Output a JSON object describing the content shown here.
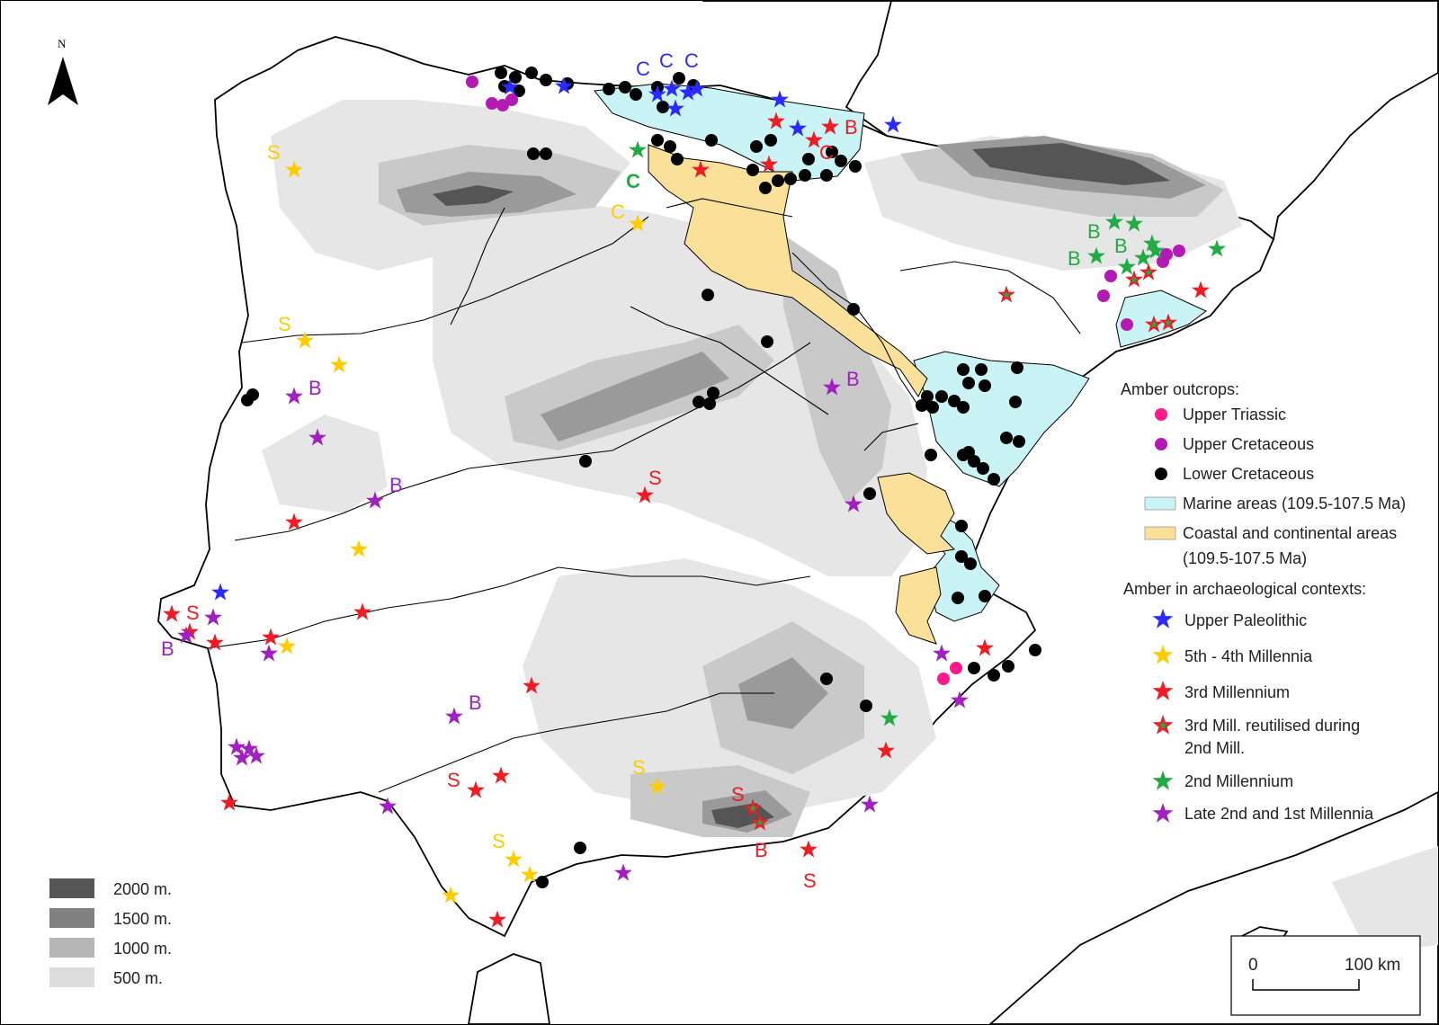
{
  "north": "N",
  "legend": {
    "outcrops_title": "Amber outcrops:",
    "upper_triassic": "Upper Triassic",
    "upper_cretaceous": "Upper Cretaceous",
    "lower_cretaceous": "Lower Cretaceous",
    "marine": "Marine areas (109.5-107.5 Ma)",
    "coastal_line1": "Coastal and continental areas",
    "coastal_line2": "(109.5-107.5 Ma)",
    "archaeo_title": "Amber in archaeological contexts:",
    "upper_paleolithic": "Upper Paleolithic",
    "m5_4": "5th - 4th Millennia",
    "m3": "3rd Millennium",
    "m3_reused_line1": "3rd Mill. reutilised during",
    "m3_reused_line2": "2nd Mill.",
    "m2": "2nd Millennium",
    "late2_1": "Late 2nd and 1st Millennia"
  },
  "elevation": [
    "2000 m.",
    "1500 m.",
    "1000 m.",
    "500 m."
  ],
  "scale": {
    "zero": "0",
    "end": "100 km"
  },
  "colors": {
    "upper_triassic": "#ff1a8c",
    "upper_cretaceous": "#b31ab3",
    "lower_cretaceous": "#000000",
    "marine": "#c9f3f5",
    "coastal": "#fbe09a",
    "upper_paleolithic": "#2b2bff",
    "m5_4": "#ffcc00",
    "m3": "#ee1c25",
    "m2": "#22aa44",
    "late2_1": "#a020c0"
  },
  "site_labels": [
    {
      "text": "C",
      "color": "blue"
    },
    {
      "text": "C",
      "color": "blue"
    },
    {
      "text": "C",
      "color": "blue"
    },
    {
      "text": "B",
      "color": "red"
    },
    {
      "text": "C",
      "color": "red"
    },
    {
      "text": "S",
      "color": "yellow"
    },
    {
      "text": "C",
      "color": "green"
    },
    {
      "text": "C",
      "color": "yellow"
    },
    {
      "text": "S",
      "color": "yellow"
    },
    {
      "text": "B",
      "color": "purple"
    },
    {
      "text": "B",
      "color": "purple"
    },
    {
      "text": "S",
      "color": "red"
    },
    {
      "text": "B",
      "color": "purple"
    },
    {
      "text": "S",
      "color": "red"
    },
    {
      "text": "B",
      "color": "purple"
    },
    {
      "text": "B",
      "color": "purple"
    },
    {
      "text": "S",
      "color": "red"
    },
    {
      "text": "S",
      "color": "yellow"
    },
    {
      "text": "S",
      "color": "red"
    },
    {
      "text": "S",
      "color": "yellow"
    },
    {
      "text": "B",
      "color": "red"
    },
    {
      "text": "S",
      "color": "red"
    },
    {
      "text": "B",
      "color": "green"
    },
    {
      "text": "B",
      "color": "green"
    },
    {
      "text": "B",
      "color": "green"
    }
  ]
}
